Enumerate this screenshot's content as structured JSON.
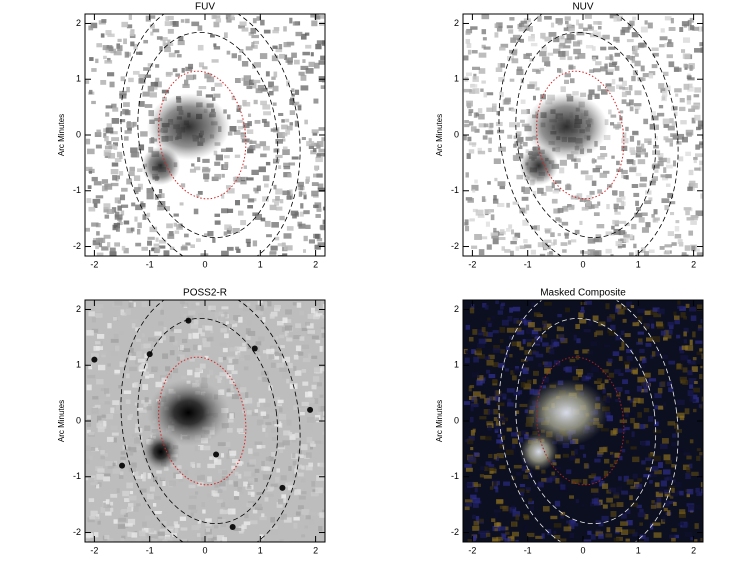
{
  "chart_data": [
    {
      "type": "image",
      "title": "FUV",
      "ylabel": "Arc Minutes",
      "xlim": [
        -2.17,
        2.17
      ],
      "ylim": [
        -2.17,
        2.17
      ],
      "xticks": [
        -2,
        -1,
        0,
        1,
        2
      ],
      "yticks": [
        -2,
        -1,
        0,
        1,
        2
      ]
    },
    {
      "type": "image",
      "title": "NUV",
      "ylabel": "Arc Minutes",
      "xlim": [
        -2.17,
        2.17
      ],
      "ylim": [
        -2.17,
        2.17
      ],
      "xticks": [
        -2,
        -1,
        0,
        1,
        2
      ],
      "yticks": [
        -2,
        -1,
        0,
        1,
        2
      ]
    },
    {
      "type": "image",
      "title": "POSS2-R",
      "ylabel": "Arc Minutes",
      "xlim": [
        -2.17,
        2.17
      ],
      "ylim": [
        -2.17,
        2.17
      ],
      "xticks": [
        -2,
        -1,
        0,
        1,
        2
      ],
      "yticks": [
        -2,
        -1,
        0,
        1,
        2
      ]
    },
    {
      "type": "image",
      "title": "Masked Composite",
      "ylabel": "Arc Minutes",
      "xlim": [
        -2.17,
        2.17
      ],
      "ylim": [
        -2.17,
        2.17
      ],
      "xticks": [
        -2,
        -1,
        0,
        1,
        2
      ],
      "yticks": [
        -2,
        -1,
        0,
        1,
        2
      ]
    }
  ]
}
